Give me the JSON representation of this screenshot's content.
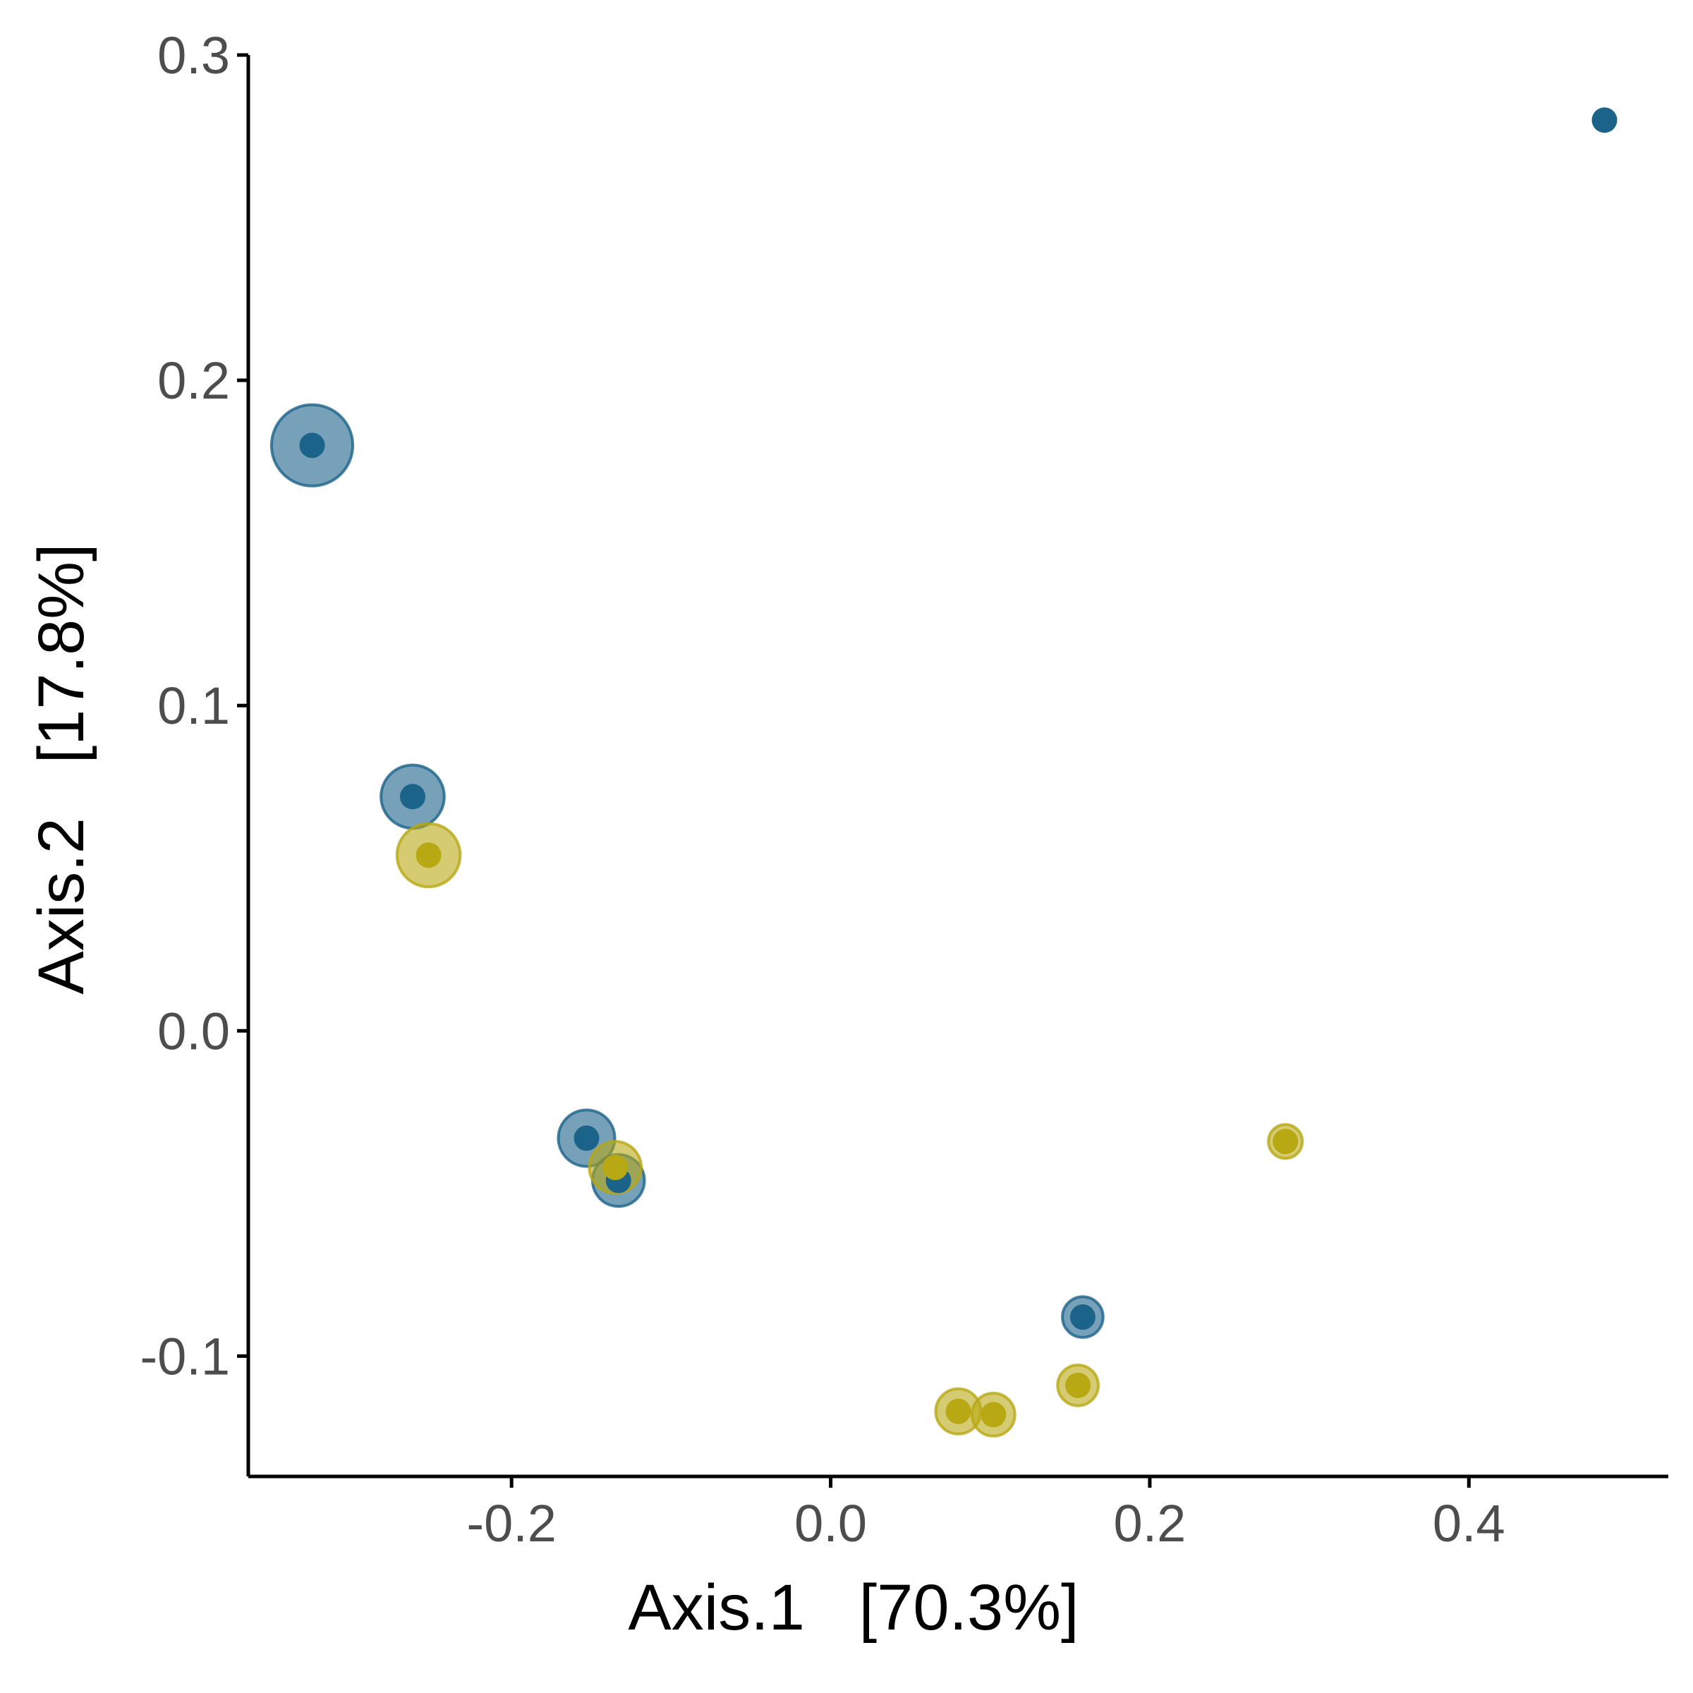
{
  "chart_data": {
    "type": "scatter",
    "title": "",
    "xlabel": "Axis.1   [70.3%]",
    "ylabel": "Axis.2   [17.8%]",
    "xlim": [
      -0.365,
      0.525
    ],
    "ylim": [
      -0.137,
      0.3
    ],
    "x_ticks": [
      -0.2,
      0.0,
      0.2,
      0.4
    ],
    "x_tick_labels": [
      "-0.2",
      "0.0",
      "0.2",
      "0.4"
    ],
    "y_ticks": [
      -0.1,
      0.0,
      0.1,
      0.2,
      0.3
    ],
    "y_tick_labels": [
      "-0.1",
      "0.0",
      "0.1",
      "0.2",
      "0.3"
    ],
    "grid": false,
    "legend": "none",
    "marker": "filled point with translucent outer circle; outer circle size varies per point",
    "series": [
      {
        "color": "#1b6389",
        "points": [
          {
            "x": -0.325,
            "y": 0.18,
            "size": 3.6
          },
          {
            "x": -0.262,
            "y": 0.072,
            "size": 2.8
          },
          {
            "x": -0.153,
            "y": -0.033,
            "size": 2.5
          },
          {
            "x": -0.133,
            "y": -0.046,
            "size": 2.3
          },
          {
            "x": 0.158,
            "y": -0.088,
            "size": 1.8
          },
          {
            "x": 0.485,
            "y": 0.28,
            "size": 0
          }
        ]
      },
      {
        "color": "#b8a814",
        "points": [
          {
            "x": -0.252,
            "y": 0.054,
            "size": 2.8
          },
          {
            "x": -0.135,
            "y": -0.042,
            "size": 2.3
          },
          {
            "x": 0.285,
            "y": -0.034,
            "size": 1.5
          },
          {
            "x": 0.155,
            "y": -0.109,
            "size": 1.8
          },
          {
            "x": 0.08,
            "y": -0.117,
            "size": 2.0
          },
          {
            "x": 0.102,
            "y": -0.118,
            "size": 1.9
          }
        ]
      }
    ]
  }
}
